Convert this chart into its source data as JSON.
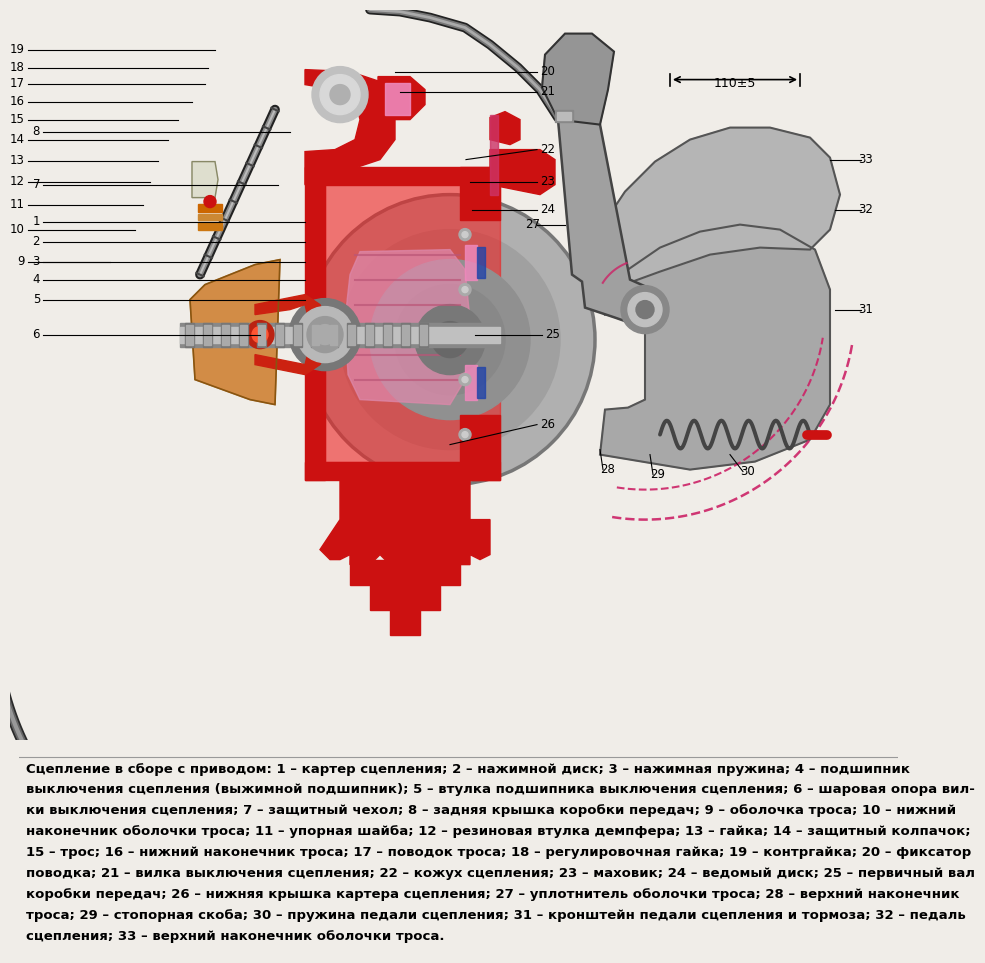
{
  "bg_color": "#f0ede8",
  "caption_lines": [
    "Сцепление в сборе с приводом: 1 – картер сцепления; 2 – нажимной диск; 3 – нажимная пружина; 4 – подшипник",
    "выключения сцепления (выжимной подшипник); 5 – втулка подшипника выключения сцепления; 6 – шаровая опора вил-",
    "ки выключения сцепления; 7 – защитный чехол; 8 – задняя крышка коробки передач; 9 – оболочка троса; 10 – нижний",
    "наконечник оболочки троса; 11 – упорная шайба; 12 – резиновая втулка демпфера; 13 – гайка; 14 – защитный колпачок;",
    "15 – трос; 16 – нижний наконечник троса; 17 – поводок троса; 18 – регулировочная гайка; 19 – контргайка; 20 – фиксатор",
    "поводка; 21 – вилка выключения сцепления; 22 – кожух сцепления; 23 – маховик; 24 – ведомый диск; 25 – первичный вал",
    "коробки передач; 26 – нижняя крышка картера сцепления; 27 – уплотнитель оболочки троса; 28 – верхний наконечник",
    "троса; 29 – стопорная скоба; 30 – пружина педали сцепления; 31 – кронштейн педали сцепления и тормоза; 32 – педаль",
    "сцепления; 33 – верхний наконечник оболочки троса."
  ],
  "caption_fontsize": 9.5,
  "red": "#cc1111",
  "pink": "#cc3366",
  "dark_gray": "#333333",
  "med_gray": "#888888",
  "light_gray": "#c8c8c8",
  "orange": "#cc7722",
  "tan": "#c8a060"
}
